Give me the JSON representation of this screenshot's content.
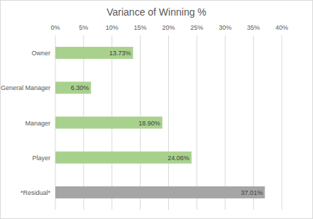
{
  "chart_data": {
    "type": "bar",
    "orientation": "horizontal",
    "title": "Variance of Winning %",
    "categories": [
      "Owner",
      "General Manager",
      "Manager",
      "Player",
      "*Residual*"
    ],
    "values": [
      13.73,
      6.3,
      18.9,
      24.06,
      37.01
    ],
    "value_labels": [
      "13.73%",
      "6.30%",
      "18.90%",
      "24.06%",
      "37.01%"
    ],
    "colors": [
      "#a9d18e",
      "#a9d18e",
      "#a9d18e",
      "#a9d18e",
      "#a5a5a5"
    ],
    "xlim": [
      0,
      40
    ],
    "xticks": [
      {
        "value": 0,
        "label": "0%"
      },
      {
        "value": 5,
        "label": "5%"
      },
      {
        "value": 10,
        "label": "10%"
      },
      {
        "value": 15,
        "label": "15%"
      },
      {
        "value": 20,
        "label": "20%"
      },
      {
        "value": 25,
        "label": "25%"
      },
      {
        "value": 30,
        "label": "30%"
      },
      {
        "value": 35,
        "label": "35%"
      },
      {
        "value": 40,
        "label": "40%"
      }
    ],
    "grid": true,
    "data_labels": true
  }
}
